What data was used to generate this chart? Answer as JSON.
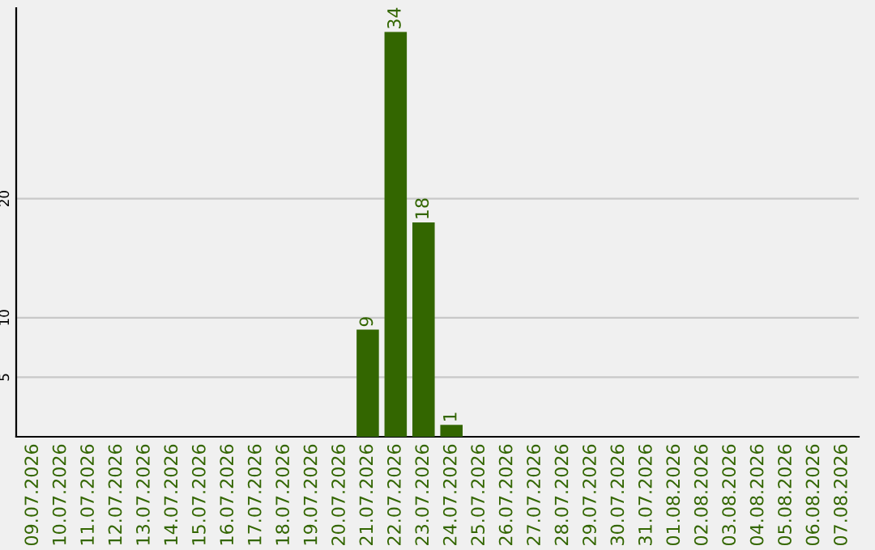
{
  "chart_data": {
    "type": "bar",
    "categories": [
      "09.07.2026",
      "10.07.2026",
      "11.07.2026",
      "12.07.2026",
      "13.07.2026",
      "14.07.2026",
      "15.07.2026",
      "16.07.2026",
      "17.07.2026",
      "18.07.2026",
      "19.07.2026",
      "20.07.2026",
      "21.07.2026",
      "22.07.2026",
      "23.07.2026",
      "24.07.2026",
      "25.07.2026",
      "26.07.2026",
      "27.07.2026",
      "28.07.2026",
      "29.07.2026",
      "30.07.2026",
      "31.07.2026",
      "01.08.2026",
      "02.08.2026",
      "03.08.2026",
      "04.08.2026",
      "05.08.2026",
      "06.08.2026",
      "07.08.2026"
    ],
    "values": [
      0,
      0,
      0,
      0,
      0,
      0,
      0,
      0,
      0,
      0,
      0,
      0,
      9,
      34,
      18,
      1,
      0,
      0,
      0,
      0,
      0,
      0,
      0,
      0,
      0,
      0,
      0,
      0,
      0,
      0
    ],
    "value_labels": [
      null,
      null,
      null,
      null,
      null,
      null,
      null,
      null,
      null,
      null,
      null,
      null,
      "9",
      "34",
      "18",
      "1",
      null,
      null,
      null,
      null,
      null,
      null,
      null,
      null,
      null,
      null,
      null,
      null,
      null,
      null
    ],
    "color": "#336600",
    "ylim": [
      0,
      36
    ],
    "yticks": [
      5,
      10,
      20
    ],
    "grid": "y",
    "legend": false
  }
}
